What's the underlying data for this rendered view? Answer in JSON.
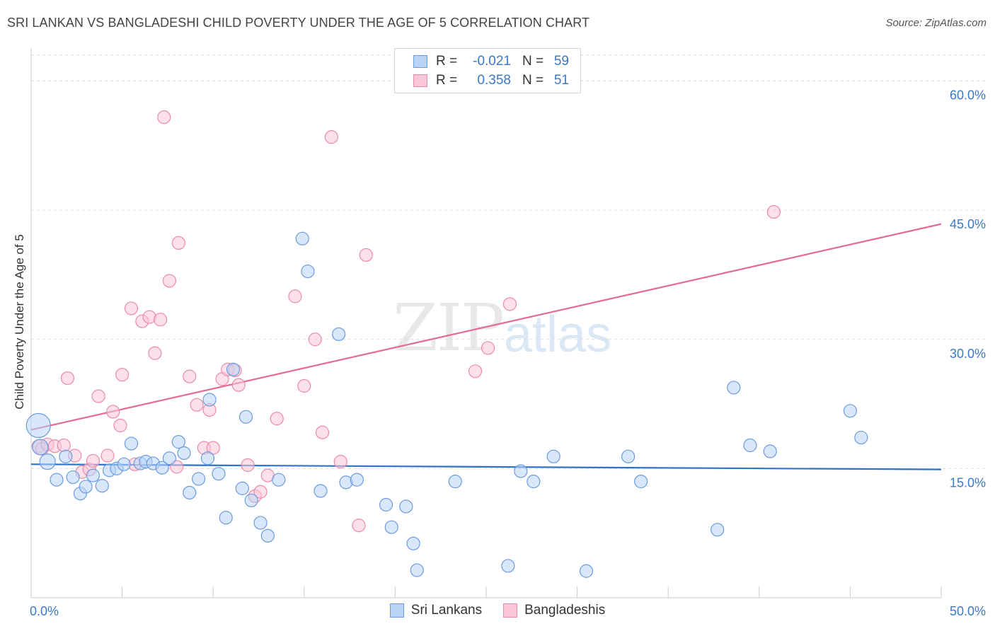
{
  "title": "SRI LANKAN VS BANGLADESHI CHILD POVERTY UNDER THE AGE OF 5 CORRELATION CHART",
  "source": "Source: ZipAtlas.com",
  "watermark": {
    "zip": "ZIP",
    "atlas": "atlas"
  },
  "legend": {
    "rows": [
      {
        "r_label": "R =",
        "r_value": "-0.021",
        "n_label": "N =",
        "n_value": "59",
        "fill": "#b8d3f4",
        "stroke": "#6b9be0"
      },
      {
        "r_label": "R =",
        "r_value": "0.358",
        "n_label": "N =",
        "n_value": "51",
        "fill": "#fbc6d6",
        "stroke": "#ea8aa8"
      }
    ]
  },
  "chart_data": {
    "type": "scatter",
    "title": "SRI LANKAN VS BANGLADESHI CHILD POVERTY UNDER THE AGE OF 5 CORRELATION CHART",
    "xlabel": "",
    "ylabel": "Child Poverty Under the Age of 5",
    "xlim": [
      0,
      50
    ],
    "ylim": [
      0,
      63
    ],
    "x_tick_labels": [
      "0.0%",
      "50.0%"
    ],
    "y_ticks": [
      15,
      30,
      45,
      60
    ],
    "y_tick_labels": [
      "15.0%",
      "30.0%",
      "45.0%",
      "60.0%"
    ],
    "grid": true,
    "legend_position": "top-center",
    "series": [
      {
        "name": "Sri Lankans",
        "color": "#6b9be0",
        "fill": "#b8d3f4",
        "r": -0.021,
        "n": 59,
        "trend": {
          "x": [
            0,
            50
          ],
          "y": [
            15.5,
            14.9
          ]
        },
        "points": [
          [
            0.4,
            20.0
          ],
          [
            0.5,
            17.5
          ],
          [
            0.9,
            15.8
          ],
          [
            1.4,
            13.7
          ],
          [
            1.9,
            16.4
          ],
          [
            2.3,
            14.0
          ],
          [
            2.7,
            12.1
          ],
          [
            3.0,
            12.9
          ],
          [
            3.4,
            14.2
          ],
          [
            3.9,
            13.0
          ],
          [
            4.3,
            14.8
          ],
          [
            4.7,
            15.0
          ],
          [
            5.1,
            15.5
          ],
          [
            5.5,
            17.9
          ],
          [
            6.0,
            15.6
          ],
          [
            6.3,
            15.8
          ],
          [
            6.7,
            15.6
          ],
          [
            7.2,
            15.1
          ],
          [
            7.6,
            16.2
          ],
          [
            8.1,
            18.1
          ],
          [
            8.4,
            16.8
          ],
          [
            8.7,
            12.2
          ],
          [
            9.2,
            13.8
          ],
          [
            9.7,
            16.2
          ],
          [
            9.8,
            23.0
          ],
          [
            10.3,
            14.4
          ],
          [
            10.7,
            9.3
          ],
          [
            11.1,
            26.5
          ],
          [
            11.6,
            12.7
          ],
          [
            11.8,
            21.0
          ],
          [
            12.1,
            11.3
          ],
          [
            12.6,
            8.7
          ],
          [
            13.0,
            7.2
          ],
          [
            13.6,
            13.7
          ],
          [
            14.9,
            41.7
          ],
          [
            15.2,
            37.9
          ],
          [
            15.9,
            12.4
          ],
          [
            16.9,
            30.6
          ],
          [
            17.3,
            13.4
          ],
          [
            17.9,
            13.7
          ],
          [
            19.5,
            10.8
          ],
          [
            19.8,
            8.2
          ],
          [
            20.6,
            10.6
          ],
          [
            21.0,
            6.3
          ],
          [
            21.2,
            3.2
          ],
          [
            23.3,
            13.5
          ],
          [
            26.2,
            3.7
          ],
          [
            26.9,
            14.7
          ],
          [
            27.6,
            13.5
          ],
          [
            28.7,
            16.4
          ],
          [
            30.5,
            3.1
          ],
          [
            32.8,
            16.4
          ],
          [
            33.5,
            13.5
          ],
          [
            37.7,
            7.9
          ],
          [
            38.6,
            24.4
          ],
          [
            39.5,
            17.7
          ],
          [
            40.6,
            17.0
          ],
          [
            45.0,
            21.7
          ],
          [
            45.6,
            18.6
          ]
        ]
      },
      {
        "name": "Bangladeshis",
        "color": "#ea8aa8",
        "fill": "#fbc6d6",
        "r": 0.358,
        "n": 51,
        "trend": {
          "x": [
            0,
            50
          ],
          "y": [
            19.5,
            43.4
          ]
        },
        "points": [
          [
            0.4,
            17.6
          ],
          [
            0.6,
            17.3
          ],
          [
            0.9,
            17.8
          ],
          [
            1.3,
            17.6
          ],
          [
            1.8,
            17.7
          ],
          [
            2.0,
            25.5
          ],
          [
            2.4,
            16.5
          ],
          [
            2.8,
            14.6
          ],
          [
            3.2,
            14.9
          ],
          [
            3.4,
            15.9
          ],
          [
            3.7,
            23.4
          ],
          [
            4.2,
            16.5
          ],
          [
            4.5,
            21.6
          ],
          [
            4.9,
            20.0
          ],
          [
            5.0,
            25.9
          ],
          [
            5.5,
            33.6
          ],
          [
            5.7,
            15.5
          ],
          [
            6.1,
            32.1
          ],
          [
            6.5,
            32.6
          ],
          [
            6.8,
            28.4
          ],
          [
            7.1,
            32.3
          ],
          [
            7.3,
            55.8
          ],
          [
            7.6,
            36.8
          ],
          [
            8.0,
            15.2
          ],
          [
            8.1,
            41.2
          ],
          [
            8.7,
            25.7
          ],
          [
            9.1,
            22.4
          ],
          [
            9.5,
            17.4
          ],
          [
            9.8,
            21.8
          ],
          [
            10.0,
            17.4
          ],
          [
            10.5,
            25.4
          ],
          [
            10.8,
            26.5
          ],
          [
            11.2,
            26.4
          ],
          [
            11.4,
            24.7
          ],
          [
            11.9,
            15.4
          ],
          [
            12.3,
            11.8
          ],
          [
            12.6,
            12.3
          ],
          [
            13.0,
            14.2
          ],
          [
            13.5,
            20.8
          ],
          [
            14.5,
            35.0
          ],
          [
            15.0,
            24.6
          ],
          [
            15.6,
            30.0
          ],
          [
            16.0,
            19.2
          ],
          [
            16.5,
            53.5
          ],
          [
            17.0,
            15.8
          ],
          [
            18.0,
            8.4
          ],
          [
            18.4,
            39.8
          ],
          [
            24.4,
            26.3
          ],
          [
            25.1,
            29.0
          ],
          [
            26.3,
            34.1
          ],
          [
            40.8,
            44.8
          ]
        ]
      }
    ]
  }
}
